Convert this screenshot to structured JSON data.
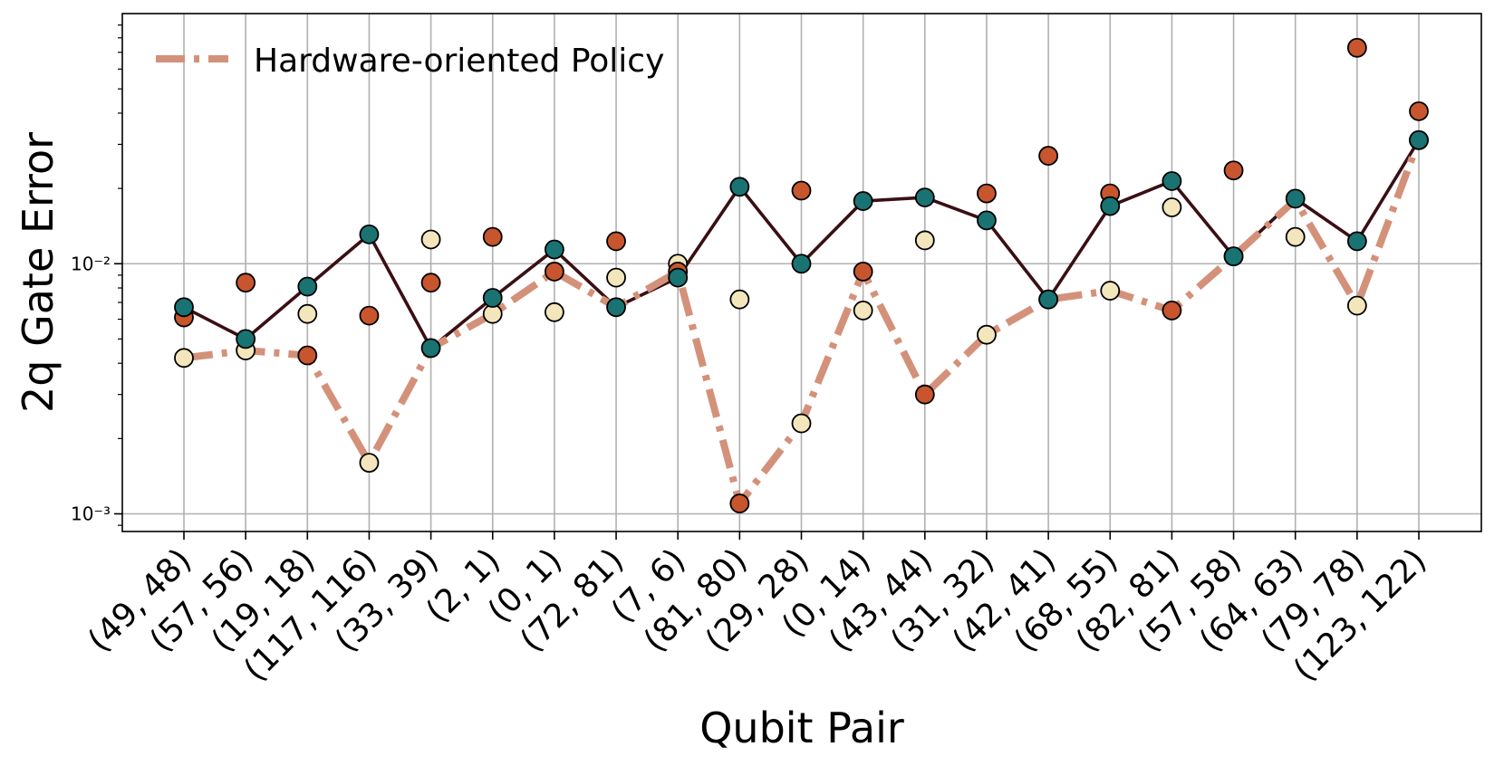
{
  "chart_data": {
    "type": "line",
    "xlabel": "Qubit Pair",
    "ylabel": "2q Gate Error",
    "yscale": "log",
    "ylim": [
      0.00085,
      0.1
    ],
    "grid": true,
    "legend_position": "top-left",
    "categories": [
      "(49, 48)",
      "(57, 56)",
      "(19, 18)",
      "(117, 116)",
      "(33, 39)",
      "(2, 1)",
      "(0, 1)",
      "(72, 81)",
      "(7, 6)",
      "(81, 80)",
      "(29, 28)",
      "(0, 14)",
      "(43, 44)",
      "(31, 32)",
      "(42, 41)",
      "(68, 55)",
      "(82, 81)",
      "(57, 58)",
      "(64, 63)",
      "(79, 78)",
      "(123, 122)"
    ],
    "y_ticks": [
      {
        "value": 0.001,
        "label": "10⁻³"
      },
      {
        "value": 0.01,
        "label": "10⁻²"
      }
    ],
    "series": [
      {
        "name": "",
        "style": "solid-line-with-markers",
        "line_color": "#3a0f14",
        "marker_color": "#1a7373",
        "values": [
          0.0067,
          0.005,
          0.0081,
          0.0131,
          0.0046,
          0.0073,
          0.0114,
          0.0067,
          0.0088,
          0.0203,
          0.01,
          0.0178,
          0.0184,
          0.0149,
          0.0072,
          0.017,
          0.0214,
          0.0107,
          0.0182,
          0.0123,
          0.0312
        ]
      },
      {
        "name": "Hardware-oriented Policy",
        "style": "dashdot-line",
        "line_color": "#d4917a",
        "values": [
          0.0042,
          0.0045,
          0.0043,
          0.0016,
          0.0046,
          0.0063,
          0.0093,
          0.0067,
          0.0093,
          0.0011,
          0.0023,
          0.0093,
          0.003,
          0.0052,
          0.0072,
          0.0078,
          0.0065,
          0.0107,
          0.018,
          0.0068,
          0.0312
        ]
      },
      {
        "name": "",
        "style": "markers",
        "marker_color": "#c8552d",
        "values": [
          0.0061,
          null,
          0.0043,
          0.0062,
          0.0084,
          0.0128,
          0.0093,
          0.0123,
          0.0093,
          0.0011,
          0.0196,
          0.0093,
          0.003,
          0.0191,
          0.027,
          0.0191,
          0.0065,
          0.0236,
          null,
          0.073,
          0.0407
        ]
      },
      {
        "name": "",
        "style": "markers",
        "marker_color": "#f3e6bc",
        "values": [
          0.0042,
          0.0045,
          0.0063,
          0.0016,
          0.0125,
          0.0063,
          0.0064,
          0.0088,
          0.01,
          0.0072,
          0.0023,
          0.0065,
          0.0124,
          0.0052,
          0.0072,
          0.0078,
          0.0168,
          0.0107,
          0.0128,
          0.0068,
          0.0312
        ]
      },
      {
        "name": "",
        "style": "markers",
        "marker_color": "#c8552d",
        "values": [
          null,
          0.0084,
          null,
          null,
          null,
          null,
          null,
          null,
          null,
          null,
          null,
          null,
          null,
          null,
          null,
          null,
          null,
          null,
          null,
          null,
          null
        ]
      }
    ]
  }
}
